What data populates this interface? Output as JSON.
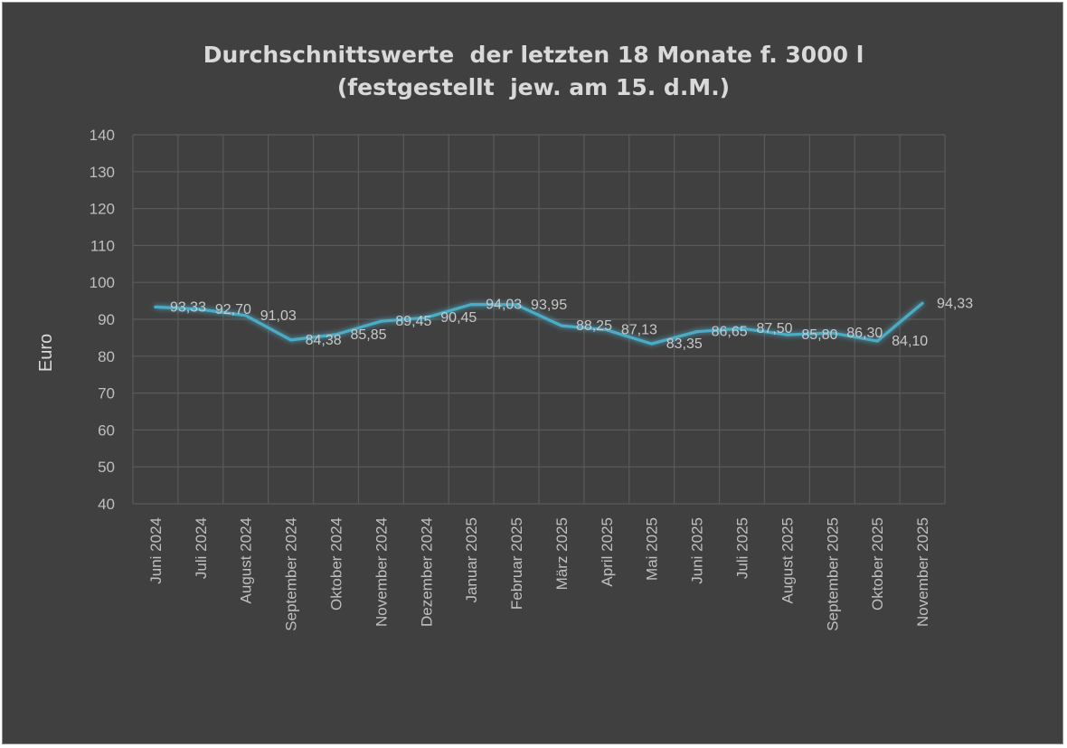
{
  "chart_data": {
    "type": "line",
    "title_lines": [
      "Durchschnittswerte  der letzten 18 Monate f. 3000 l",
      "(festgestellt  jew. am 15. d.M.)"
    ],
    "ylabel": "Euro",
    "xlabel": "",
    "ylim": [
      40,
      140
    ],
    "ytick_step": 10,
    "yticks": [
      "40",
      "50",
      "60",
      "70",
      "80",
      "90",
      "100",
      "110",
      "120",
      "130",
      "140"
    ],
    "grid": true,
    "categories": [
      "Juni 2024",
      "Juli 2024",
      "August 2024",
      "September 2024",
      "Oktober 2024",
      "November 2024",
      "Dezember 2024",
      "Januar 2025",
      "Februar 2025",
      "März 2025",
      "April 2025",
      "Mai 2025",
      "Juni 2025",
      "Juli 2025",
      "August 2025",
      "September 2025",
      "Oktober 2025",
      "November 2025"
    ],
    "values": [
      93.33,
      92.7,
      91.03,
      84.38,
      85.85,
      89.45,
      90.45,
      94.03,
      93.95,
      88.25,
      87.13,
      83.35,
      86.65,
      87.5,
      85.8,
      86.3,
      84.1,
      94.33
    ],
    "value_labels": [
      "93,33",
      "92,70",
      "91,03",
      "84,38",
      "85,85",
      "89,45",
      "90,45",
      "94,03",
      "93,95",
      "88,25",
      "87,13",
      "83,35",
      "86,65",
      "87,50",
      "85,80",
      "86,30",
      "84,10",
      "94,33"
    ],
    "series_color": "#4bacc6",
    "background_color": "#404040",
    "grid_color": "#5a5a5a"
  }
}
